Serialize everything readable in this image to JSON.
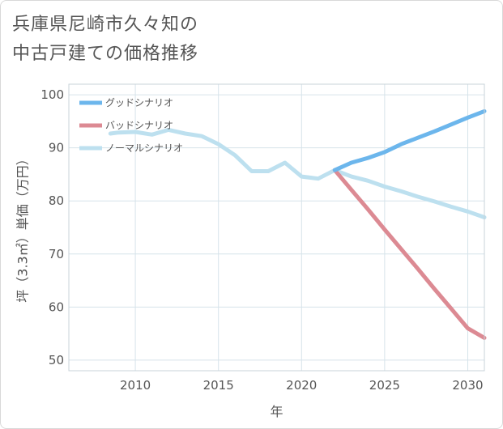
{
  "title_line1": "兵庫県尼崎市久々知の",
  "title_line2": "中古戸建ての価格推移",
  "chart_data": {
    "type": "line",
    "xlabel": "年",
    "ylabel": "坪（3.3㎡）単価（万円）",
    "xlim": [
      2006,
      2031
    ],
    "ylim": [
      48,
      102
    ],
    "x_ticks": [
      2010,
      2015,
      2020,
      2025,
      2030
    ],
    "y_ticks": [
      50,
      60,
      70,
      80,
      90,
      100
    ],
    "grid": true,
    "legend_position": "top-left",
    "series": [
      {
        "name": "グッドシナリオ",
        "color": "#6cb6ec",
        "x": [
          2022,
          2023,
          2024,
          2025,
          2026,
          2027,
          2028,
          2029,
          2030,
          2031
        ],
        "y": [
          85.8,
          87.2,
          88.1,
          89.2,
          90.7,
          91.9,
          93.1,
          94.4,
          95.7,
          96.9
        ]
      },
      {
        "name": "バッドシナリオ",
        "color": "#dc8a93",
        "x": [
          2022,
          2023,
          2024,
          2025,
          2026,
          2027,
          2028,
          2029,
          2030,
          2031
        ],
        "y": [
          85.8,
          82.1,
          78.4,
          74.6,
          70.9,
          67.2,
          63.4,
          59.7,
          56.0,
          54.2
        ]
      },
      {
        "name": "ノーマルシナリオ",
        "color": "#bde0ef",
        "x": [
          2008.5,
          2009,
          2010,
          2011,
          2012,
          2013,
          2014,
          2015,
          2016,
          2017,
          2018,
          2019,
          2020,
          2021,
          2022,
          2023,
          2024,
          2025,
          2026,
          2027,
          2028,
          2029,
          2030,
          2031
        ],
        "y": [
          92.7,
          92.9,
          93.0,
          92.5,
          93.4,
          92.7,
          92.2,
          90.7,
          88.6,
          85.6,
          85.6,
          87.2,
          84.6,
          84.2,
          85.8,
          84.6,
          83.8,
          82.7,
          81.8,
          80.8,
          79.9,
          78.9,
          78.0,
          76.9
        ]
      }
    ]
  }
}
